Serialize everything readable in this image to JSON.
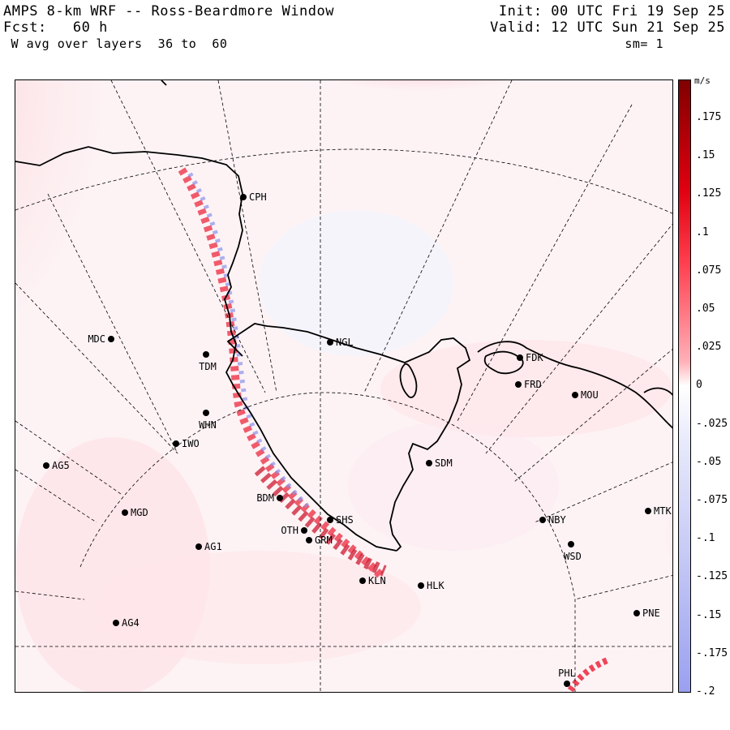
{
  "header": {
    "title": "AMPS 8-km WRF -- Ross-Beardmore Window",
    "forecast": "Fcst:   60 h",
    "field": " W avg over layers  36 to  60",
    "init": "Init: 00 UTC Fri 19 Sep 25",
    "valid": "Valid: 12 UTC Sun 21 Sep 25",
    "smoothing": "sm= 1"
  },
  "colorbar": {
    "unit": "m/s",
    "labels": [
      ".175",
      ".15",
      ".125",
      ".1",
      ".075",
      ".05",
      ".025",
      "0",
      "-.025",
      "-.05",
      "-.075",
      "-.1",
      "-.125",
      "-.15",
      "-.175",
      "-.2"
    ],
    "max_color": "#800000",
    "mid_color": "#ffffff",
    "min_color": "#9aa0f0"
  },
  "stations": [
    {
      "name": "CPH"
    },
    {
      "name": "NGL"
    },
    {
      "name": "FDK"
    },
    {
      "name": "FRD"
    },
    {
      "name": "MOU"
    },
    {
      "name": "MDC"
    },
    {
      "name": "TDM"
    },
    {
      "name": "WHN"
    },
    {
      "name": "IWO"
    },
    {
      "name": "AG5"
    },
    {
      "name": "SDM"
    },
    {
      "name": "BDM"
    },
    {
      "name": "MGD"
    },
    {
      "name": "NBY"
    },
    {
      "name": "MTK"
    },
    {
      "name": "OTH"
    },
    {
      "name": "SHS"
    },
    {
      "name": "GRM"
    },
    {
      "name": "AG1"
    },
    {
      "name": "WSD"
    },
    {
      "name": "KLN"
    },
    {
      "name": "HLK"
    },
    {
      "name": "AG4"
    },
    {
      "name": "PNE"
    },
    {
      "name": "PHL"
    }
  ],
  "colors": {
    "updraft": "#e8001c",
    "downdraft": "#7f86e8",
    "coast": "#000000"
  }
}
